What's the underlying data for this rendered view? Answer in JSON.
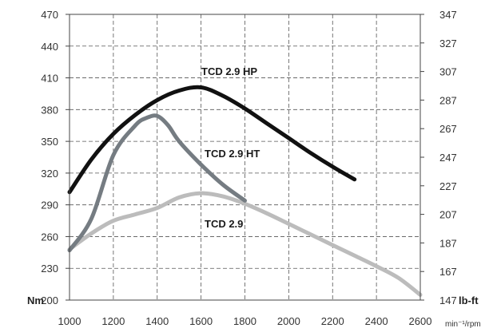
{
  "chart_data": {
    "type": "line",
    "x_ticks": [
      "1000",
      "1200",
      "1400",
      "1600",
      "1800",
      "2000",
      "2200",
      "2400",
      "2600"
    ],
    "y_left_ticks": [
      "200",
      "230",
      "260",
      "290",
      "320",
      "350",
      "380",
      "410",
      "440",
      "470"
    ],
    "y_right_ticks": [
      "147",
      "167",
      "187",
      "207",
      "227",
      "247",
      "267",
      "287",
      "307",
      "327",
      "347"
    ],
    "xlim": [
      1000,
      2600
    ],
    "ylim": [
      200,
      470
    ],
    "y_right_lim": [
      147,
      347
    ],
    "y_left_unit": "Nm",
    "y_right_unit": "lb-ft",
    "x_unit": "min⁻¹/rpm",
    "grid": true,
    "series": [
      {
        "name": "TCD 2.9 HP",
        "color": "#111111",
        "x": [
          1000,
          1100,
          1200,
          1300,
          1400,
          1500,
          1600,
          1700,
          1800,
          1900,
          2000,
          2100,
          2200,
          2300
        ],
        "values": [
          302,
          333,
          357,
          375,
          389,
          398,
          401,
          393,
          381,
          367,
          353,
          339,
          326,
          314
        ]
      },
      {
        "name": "TCD 2.9 HT",
        "color": "#757c82",
        "x": [
          1000,
          1100,
          1200,
          1300,
          1350,
          1400,
          1450,
          1500,
          1600,
          1700,
          1800
        ],
        "values": [
          247,
          277,
          337,
          365,
          372,
          374,
          365,
          350,
          328,
          309,
          294
        ]
      },
      {
        "name": "TCD 2.9",
        "color": "#bcbcbc",
        "x": [
          1000,
          1100,
          1200,
          1300,
          1400,
          1500,
          1600,
          1700,
          1800,
          1900,
          2000,
          2100,
          2200,
          2300,
          2400,
          2500,
          2600
        ],
        "values": [
          248,
          263,
          275,
          281,
          287,
          297,
          301,
          298,
          291,
          282,
          272,
          262,
          252,
          242,
          232,
          221,
          205
        ]
      }
    ]
  }
}
